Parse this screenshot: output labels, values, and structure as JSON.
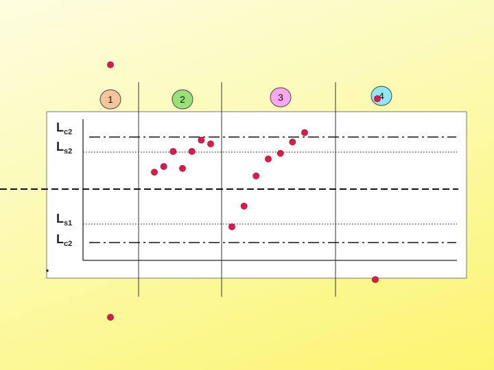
{
  "chart_data": {
    "type": "scatter",
    "title": "",
    "xlabel": "",
    "ylabel": "",
    "grid": false,
    "zones": [
      {
        "label": "1",
        "color": "#f6c59c"
      },
      {
        "label": "2",
        "color": "#99e27a"
      },
      {
        "label": "3",
        "color": "#f8a8ef"
      },
      {
        "label": "4",
        "color": "#90e6f2"
      }
    ],
    "limit_lines": [
      {
        "main": "L",
        "sub": "c2",
        "style": "dash-dot"
      },
      {
        "main": "L",
        "sub": "s2",
        "style": "dotted"
      },
      {
        "main": "L",
        "sub": "s1",
        "style": "dotted"
      },
      {
        "main": "L",
        "sub": "c2",
        "style": "dash-dot"
      }
    ],
    "center_line": {
      "style": "dashed"
    },
    "point_color": "#e0194a",
    "points": [
      {
        "zone": 1,
        "y": 3.3
      },
      {
        "zone": 1,
        "y": -3.4
      },
      {
        "zone": 2,
        "y": 0.45
      },
      {
        "zone": 2,
        "y": 0.6
      },
      {
        "zone": 2,
        "y": 1.0
      },
      {
        "zone": 2,
        "y": 0.55
      },
      {
        "zone": 2,
        "y": 1.0
      },
      {
        "zone": 2,
        "y": 1.3
      },
      {
        "zone": 2,
        "y": 1.2
      },
      {
        "zone": 3,
        "y": -1.0
      },
      {
        "zone": 3,
        "y": -0.45
      },
      {
        "zone": 3,
        "y": 0.35
      },
      {
        "zone": 3,
        "y": 0.8
      },
      {
        "zone": 3,
        "y": 0.95
      },
      {
        "zone": 3,
        "y": 1.25
      },
      {
        "zone": 3,
        "y": 1.5
      },
      {
        "zone": 4,
        "y": 2.4
      },
      {
        "zone": 4,
        "y": -2.4
      }
    ]
  }
}
